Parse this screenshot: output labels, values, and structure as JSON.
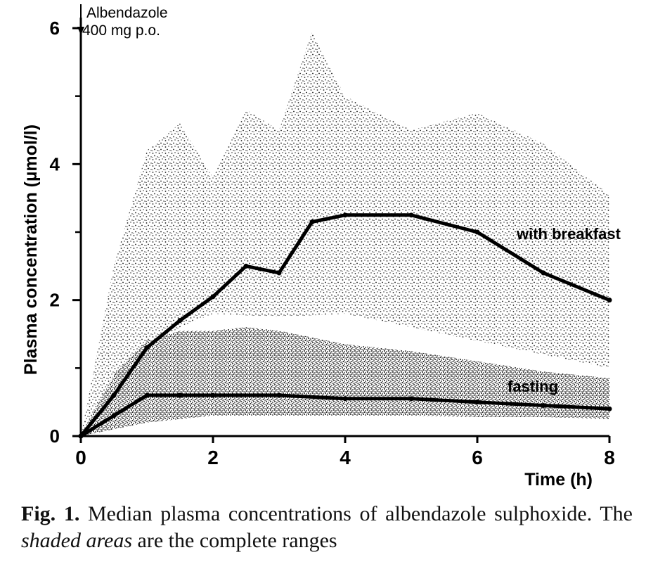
{
  "chart_data": {
    "type": "line",
    "xlabel": "Time (h)",
    "ylabel": "Plasma concentration (µmol/l)",
    "xlim": [
      0,
      8
    ],
    "ylim": [
      0,
      6
    ],
    "x_ticks": [
      "0",
      "2",
      "4",
      "6",
      "8"
    ],
    "y_ticks": [
      "0",
      "2",
      "4",
      "6"
    ],
    "y_minor_ticks": [
      1,
      3,
      5
    ],
    "grid": false,
    "annotation": {
      "line1": "Albendazole",
      "line2": "400 mg p.o.",
      "x": 0
    },
    "series": [
      {
        "name": "with breakfast",
        "x": [
          0,
          0.5,
          1,
          1.5,
          2,
          2.5,
          3,
          3.5,
          4,
          5,
          6,
          7,
          8
        ],
        "values": [
          0,
          0.6,
          1.3,
          1.7,
          2.05,
          2.5,
          2.4,
          3.15,
          3.25,
          3.25,
          3.0,
          2.4,
          2.0
        ],
        "range_upper": {
          "x": [
            0,
            0.5,
            1,
            1.5,
            2,
            2.5,
            3,
            3.5,
            4,
            5,
            6,
            7,
            8
          ],
          "values": [
            0,
            2.5,
            4.2,
            4.6,
            3.8,
            4.8,
            4.5,
            5.95,
            5.0,
            4.5,
            4.75,
            4.3,
            3.55
          ]
        },
        "range_lower": {
          "x": [
            0,
            0.5,
            1,
            1.5,
            2,
            3,
            4,
            5,
            6,
            7,
            8
          ],
          "values": [
            0,
            0.6,
            1.3,
            1.6,
            1.8,
            1.75,
            1.8,
            1.6,
            1.4,
            1.2,
            1.0
          ]
        }
      },
      {
        "name": "fasting",
        "x": [
          0,
          0.5,
          1,
          1.5,
          2,
          3,
          4,
          5,
          6,
          7,
          8
        ],
        "values": [
          0,
          0.3,
          0.6,
          0.6,
          0.6,
          0.6,
          0.55,
          0.55,
          0.5,
          0.45,
          0.4
        ],
        "range_upper": {
          "x": [
            0,
            0.5,
            1,
            1.5,
            2,
            2.5,
            3,
            4,
            5,
            6,
            7,
            8
          ],
          "values": [
            0,
            0.9,
            1.4,
            1.55,
            1.55,
            1.6,
            1.55,
            1.35,
            1.25,
            1.1,
            0.95,
            0.85
          ]
        },
        "range_lower": {
          "x": [
            0,
            0.5,
            1,
            2,
            3,
            4,
            5,
            6,
            7,
            8
          ],
          "values": [
            0,
            0.1,
            0.2,
            0.3,
            0.3,
            0.3,
            0.3,
            0.28,
            0.28,
            0.25
          ]
        }
      }
    ]
  },
  "caption": {
    "label": "Fig. 1.",
    "text_before": " Median plasma concentrations of albendazole sulphoxide. The ",
    "emphasis": "shaded areas",
    "text_after": " are the complete ranges"
  }
}
